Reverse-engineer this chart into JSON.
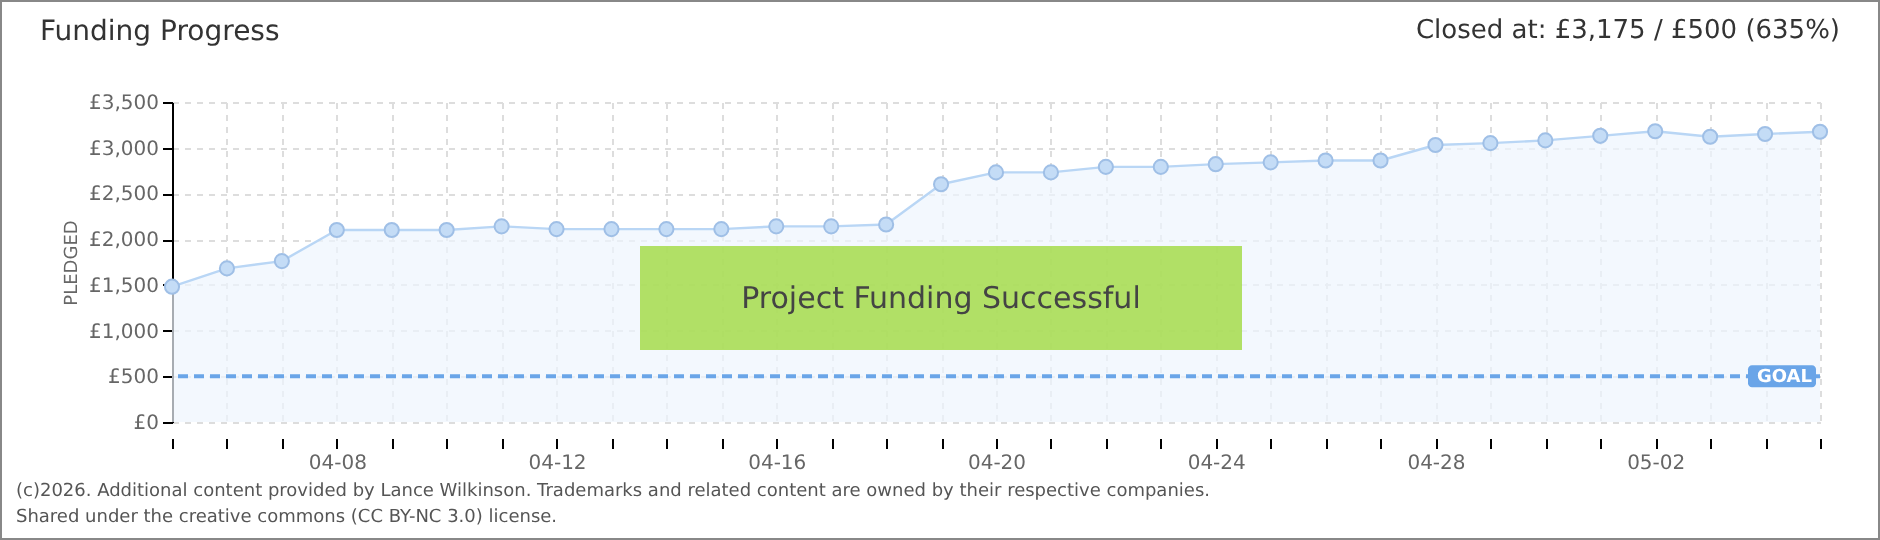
{
  "chart_data": {
    "type": "area",
    "title": "Funding Progress",
    "ylabel": "PLEDGED",
    "x": [
      "--04-05",
      "--04-06",
      "--04-07",
      "--04-08",
      "--04-09",
      "--04-10",
      "--04-11",
      "--04-12",
      "--04-13",
      "--04-14",
      "--04-15",
      "--04-16",
      "--04-17",
      "--04-18",
      "--04-19",
      "--04-20",
      "--04-21",
      "--04-22",
      "--04-23",
      "--04-24",
      "--04-25",
      "--04-26",
      "--04-27",
      "--04-28",
      "--04-29",
      "--04-30",
      "--05-01",
      "--05-02",
      "--05-03",
      "--05-04",
      "--05-05"
    ],
    "series": [
      {
        "color": "#b9d6f5",
        "values": [
          1480,
          1680,
          1760,
          2100,
          2100,
          2100,
          2140,
          2110,
          2110,
          2110,
          2110,
          2140,
          2140,
          2160,
          2600,
          2730,
          2730,
          2790,
          2790,
          2820,
          2840,
          2860,
          2860,
          3030,
          3050,
          3080,
          3130,
          3180,
          3120,
          3150,
          3175
        ]
      }
    ],
    "xlim": [
      "--04-05",
      "--05-05"
    ],
    "xticks": [
      {
        "value": "--04-05",
        "label": null
      },
      {
        "value": "--04-06",
        "label": null
      },
      {
        "value": "--04-07",
        "label": null
      },
      {
        "value": "--04-08",
        "label": "04-08"
      },
      {
        "value": "--04-09",
        "label": null
      },
      {
        "value": "--04-10",
        "label": null
      },
      {
        "value": "--04-11",
        "label": null
      },
      {
        "value": "--04-12",
        "label": "04-12"
      },
      {
        "value": "--04-13",
        "label": null
      },
      {
        "value": "--04-14",
        "label": null
      },
      {
        "value": "--04-15",
        "label": null
      },
      {
        "value": "--04-16",
        "label": "04-16"
      },
      {
        "value": "--04-17",
        "label": null
      },
      {
        "value": "--04-18",
        "label": null
      },
      {
        "value": "--04-19",
        "label": null
      },
      {
        "value": "--04-20",
        "label": "04-20"
      },
      {
        "value": "--04-21",
        "label": null
      },
      {
        "value": "--04-22",
        "label": null
      },
      {
        "value": "--04-23",
        "label": null
      },
      {
        "value": "--04-24",
        "label": "04-24"
      },
      {
        "value": "--04-25",
        "label": null
      },
      {
        "value": "--04-26",
        "label": null
      },
      {
        "value": "--04-27",
        "label": null
      },
      {
        "value": "--04-28",
        "label": "04-28"
      },
      {
        "value": "--04-29",
        "label": null
      },
      {
        "value": "--04-30",
        "label": null
      },
      {
        "value": "--05-01",
        "label": null
      },
      {
        "value": "--05-02",
        "label": "05-02"
      },
      {
        "value": "--05-03",
        "label": null
      },
      {
        "value": "--05-04",
        "label": null
      },
      {
        "value": "--05-05",
        "label": null
      }
    ],
    "ylim": [
      0,
      3500
    ],
    "yticks": [
      {
        "value": 0,
        "label": "£0"
      },
      {
        "value": 500,
        "label": "£500"
      },
      {
        "value": 1000,
        "label": "£1,000"
      },
      {
        "value": 1500,
        "label": "£1,500"
      },
      {
        "value": 2000,
        "label": "£2,000"
      },
      {
        "value": 2500,
        "label": "£2,500"
      },
      {
        "value": 3000,
        "label": "£3,000"
      },
      {
        "value": 3500,
        "label": "£3,500"
      }
    ],
    "ref_lines": [
      {
        "axis": "y",
        "value": 500,
        "label": "GOAL",
        "color": "#6aa5e8",
        "line_style": "dashed"
      }
    ],
    "annotations": [
      "Closed at:  £3,175 / £500 (635%)",
      "Project Funding Successful",
      "(c)2026. Additional content provided by Lance Wilkinson. Trademarks and related content are owned by their respective companies.",
      "Shared under the creative commons (CC BY-NC 3.0) license."
    ],
    "grid": true,
    "marker": "circle",
    "line_style": "solid"
  }
}
